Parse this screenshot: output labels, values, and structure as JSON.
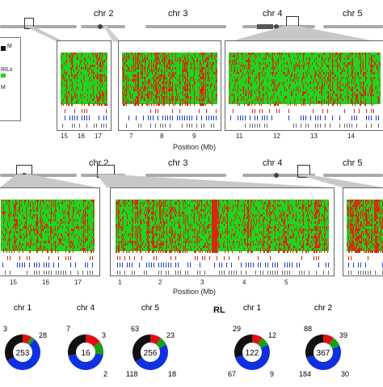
{
  "figure": {
    "top_row": {
      "chromosome_labels": [
        "chr 2",
        "chr 3",
        "chr 4",
        "chr 5"
      ],
      "legend": {
        "item_m": "M",
        "item_rils": "RILs",
        "item_mm": "M"
      },
      "panels": [
        {
          "ticks": [
            "15",
            "16",
            "17"
          ]
        },
        {
          "ticks": [
            "7",
            "8",
            "9"
          ]
        },
        {
          "ticks": [
            "11",
            "12",
            "13",
            "14"
          ]
        }
      ],
      "axis_title": "Position (Mb)"
    },
    "middle_row": {
      "chromosome_labels": [
        "chr 2",
        "chr 3",
        "chr 4",
        "chr 5"
      ],
      "panels": [
        {
          "ticks": [
            "15",
            "16",
            "17"
          ]
        },
        {
          "ticks": [
            "1",
            "2",
            "3",
            "4",
            "5"
          ]
        },
        {
          "ticks": []
        }
      ],
      "axis_title": "Position (Mb)"
    },
    "bottom_row": {
      "group_label": "RL",
      "donuts": [
        {
          "title": "chr 1",
          "center": "253",
          "labels": [
            "3",
            "28"
          ],
          "colors": [
            "#e01010",
            "#19a019",
            "#1030e0",
            "#111111"
          ]
        },
        {
          "title": "chr 4",
          "center": "16",
          "labels": [
            "7",
            "3",
            "2"
          ],
          "colors": [
            "#e01010",
            "#19a019",
            "#1030e0",
            "#111111"
          ]
        },
        {
          "title": "chr 5",
          "center": "256",
          "labels": [
            "63",
            "23",
            "18",
            "118"
          ],
          "colors": [
            "#e01010",
            "#19a019",
            "#1030e0",
            "#111111"
          ]
        },
        {
          "title": "chr 1",
          "center": "122",
          "labels": [
            "29",
            "12",
            "9",
            "67"
          ],
          "colors": [
            "#e01010",
            "#19a019",
            "#1030e0",
            "#111111"
          ]
        },
        {
          "title": "chr 2",
          "center": "367",
          "labels": [
            "88",
            "39",
            "30",
            "184"
          ],
          "colors": [
            "#e01010",
            "#19a019",
            "#1030e0",
            "#111111"
          ]
        }
      ]
    },
    "colors": {
      "green": "#1fd41f",
      "red": "#d62a10",
      "blue": "#1a3fd6",
      "gray": "#999999"
    }
  }
}
